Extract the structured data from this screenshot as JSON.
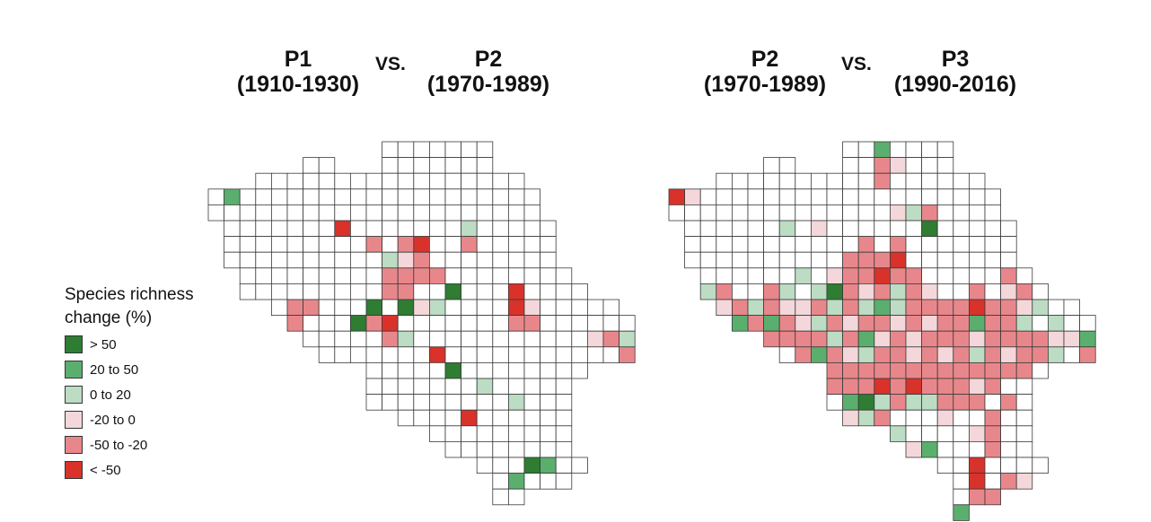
{
  "maps": [
    {
      "title_left_period": "P1",
      "title_left_years": "(1910-1930)",
      "vs": "VS.",
      "title_right_period": "P2",
      "title_right_years": "(1970-1989)"
    },
    {
      "title_left_period": "P2",
      "title_left_years": "(1970-1989)",
      "vs": "VS.",
      "title_right_period": "P3",
      "title_right_years": "(1990-2016)"
    }
  ],
  "legend": {
    "title_line1": "Species richness",
    "title_line2": "change (%)",
    "items": [
      {
        "label": "> 50",
        "color": "#2e7d32"
      },
      {
        "label": "20 to 50",
        "color": "#5aaf6e"
      },
      {
        "label": "0 to 20",
        "color": "#bcdcc3"
      },
      {
        "label": "-20 to 0",
        "color": "#f4d7da"
      },
      {
        "label": "-50 to -20",
        "color": "#e8878b"
      },
      {
        "label": "< -50",
        "color": "#d9322b"
      }
    ]
  },
  "colors": {
    "cell_empty": "#ffffff",
    "cell_border": "#3a3a3a"
  }
}
